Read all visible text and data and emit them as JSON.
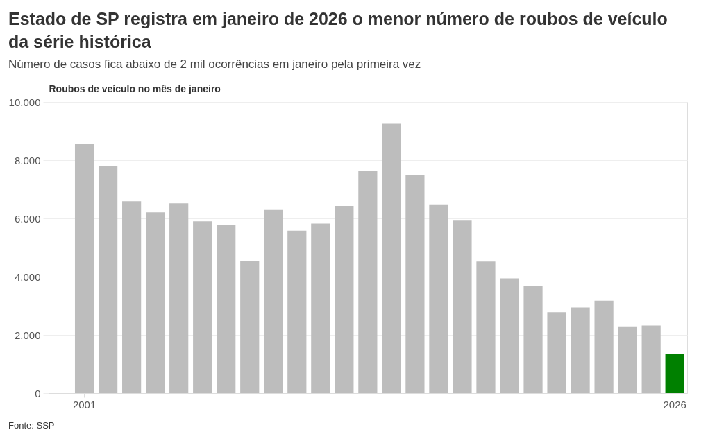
{
  "chart_data": {
    "type": "bar",
    "title": "Estado de SP registra em janeiro de 2026 o menor número de roubos de veículo da série histórica",
    "subtitle": "Número de casos fica abaixo de 2 mil ocorrências em janeiro pela primeira vez",
    "ylabel": "Roubos de veículo no mês de janeiro",
    "categories": [
      "2001",
      null,
      null,
      null,
      null,
      null,
      null,
      null,
      null,
      null,
      null,
      null,
      null,
      null,
      null,
      null,
      null,
      null,
      null,
      null,
      null,
      null,
      null,
      null,
      null,
      "2026"
    ],
    "values": [
      8560,
      7790,
      6590,
      6210,
      6520,
      5900,
      5780,
      4530,
      6290,
      5580,
      5820,
      6430,
      7630,
      9250,
      7480,
      6480,
      5920,
      4520,
      3940,
      3670,
      2780,
      2940,
      3170,
      2290,
      2320,
      1360
    ],
    "colors": [
      "#bdbdbd",
      "#bdbdbd",
      "#bdbdbd",
      "#bdbdbd",
      "#bdbdbd",
      "#bdbdbd",
      "#bdbdbd",
      "#bdbdbd",
      "#bdbdbd",
      "#bdbdbd",
      "#bdbdbd",
      "#bdbdbd",
      "#bdbdbd",
      "#bdbdbd",
      "#bdbdbd",
      "#bdbdbd",
      "#bdbdbd",
      "#bdbdbd",
      "#bdbdbd",
      "#bdbdbd",
      "#bdbdbd",
      "#bdbdbd",
      "#bdbdbd",
      "#bdbdbd",
      "#bdbdbd",
      "#008000"
    ],
    "ylim": [
      0,
      10000
    ],
    "yticks": [
      0,
      {
        "value": 2000,
        "label": "2.000"
      },
      {
        "value": 4000,
        "label": "4.000"
      },
      {
        "value": 6000,
        "label": "6.000"
      },
      {
        "value": 8000,
        "label": "8.000"
      },
      {
        "value": 10000,
        "label": "10.000"
      }
    ],
    "grid": "y",
    "annotations": [
      "Fonte: SSP"
    ]
  }
}
